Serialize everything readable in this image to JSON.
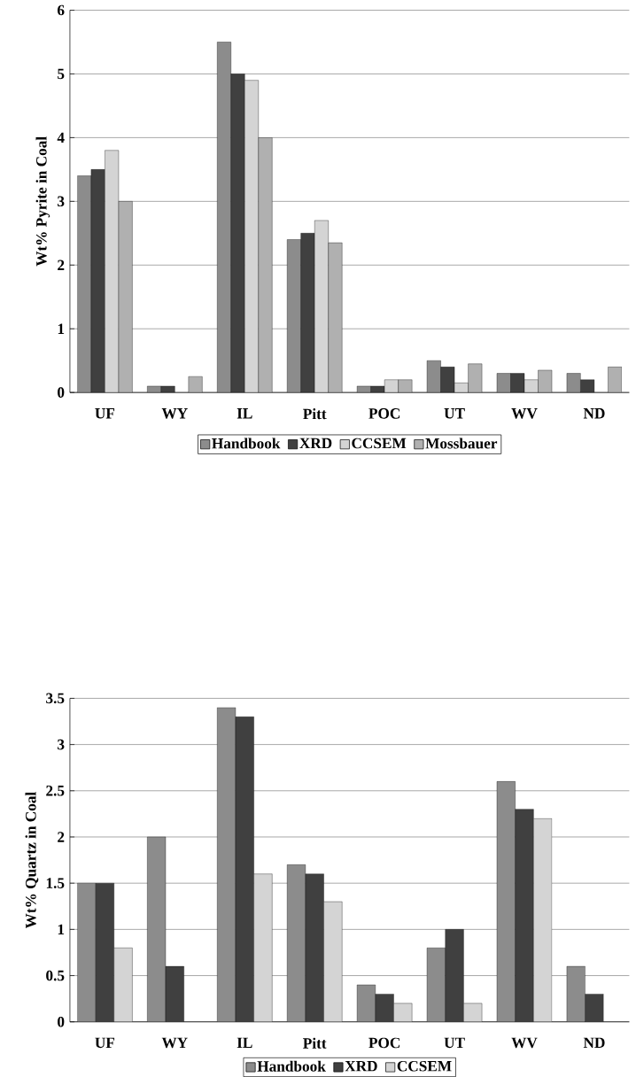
{
  "chart_data": [
    {
      "type": "bar",
      "ylabel": "Wt% Pyrite in Coal",
      "categories": [
        "UF",
        "WY",
        "IL",
        "Pitt",
        "POC",
        "UT",
        "WV",
        "ND"
      ],
      "ylim": [
        0,
        6
      ],
      "yticks": [
        0,
        1,
        2,
        3,
        4,
        5,
        6
      ],
      "grid": "y",
      "legend": "bottom",
      "series": [
        {
          "name": "Handbook",
          "color": "#8c8c8c",
          "values": [
            3.4,
            0.1,
            5.5,
            2.4,
            0.1,
            0.5,
            0.3,
            0.3
          ]
        },
        {
          "name": "XRD",
          "color": "#404040",
          "values": [
            3.5,
            0.1,
            5.0,
            2.5,
            0.1,
            0.4,
            0.3,
            0.2
          ]
        },
        {
          "name": "CCSEM",
          "color": "#d4d4d4",
          "values": [
            3.8,
            null,
            4.9,
            2.7,
            0.2,
            0.15,
            0.2,
            null
          ]
        },
        {
          "name": "Mossbauer",
          "color": "#b0b0b0",
          "values": [
            3.0,
            0.25,
            4.0,
            2.35,
            0.2,
            0.45,
            0.35,
            0.4
          ]
        }
      ]
    },
    {
      "type": "bar",
      "ylabel": "Wt% Quartz in Coal",
      "categories": [
        "UF",
        "WY",
        "IL",
        "Pitt",
        "POC",
        "UT",
        "WV",
        "ND"
      ],
      "ylim": [
        0,
        3.5
      ],
      "yticks": [
        0,
        0.5,
        1,
        1.5,
        2,
        2.5,
        3,
        3.5
      ],
      "grid": "y",
      "legend": "bottom",
      "series": [
        {
          "name": "Handbook",
          "color": "#8c8c8c",
          "values": [
            1.5,
            2.0,
            3.4,
            1.7,
            0.4,
            0.8,
            2.6,
            0.6
          ]
        },
        {
          "name": "XRD",
          "color": "#404040",
          "values": [
            1.5,
            0.6,
            3.3,
            1.6,
            0.3,
            1.0,
            2.3,
            0.3
          ]
        },
        {
          "name": "CCSEM",
          "color": "#d4d4d4",
          "values": [
            0.8,
            null,
            1.6,
            1.3,
            0.2,
            0.2,
            2.2,
            null
          ]
        }
      ]
    }
  ]
}
